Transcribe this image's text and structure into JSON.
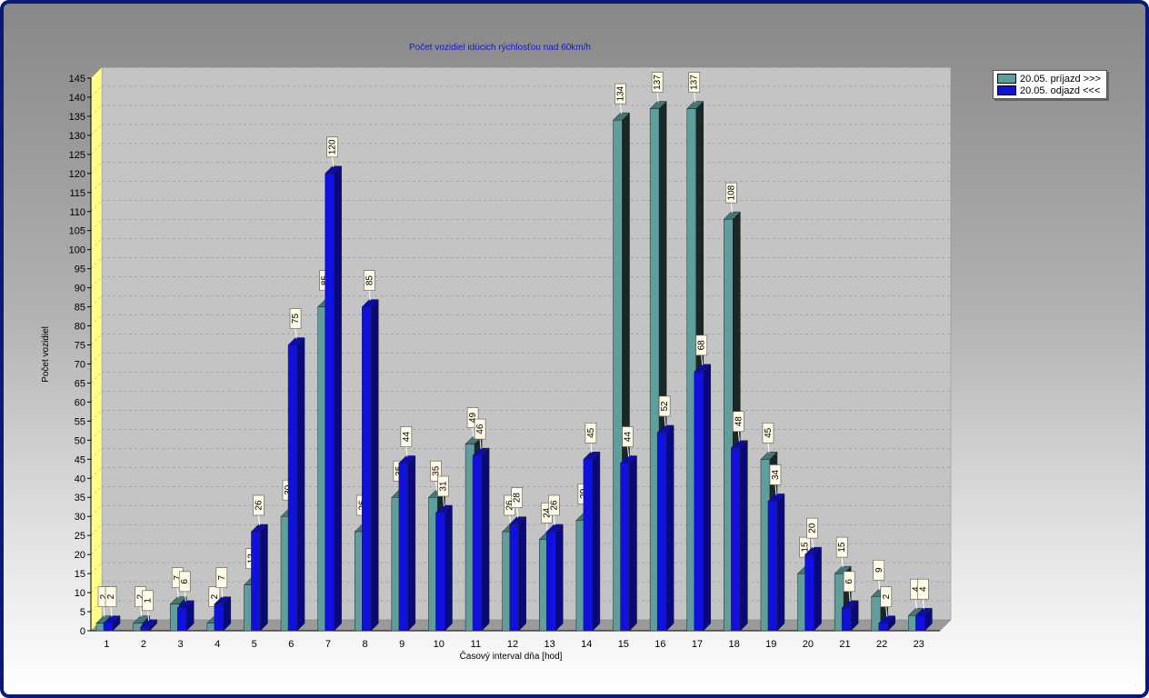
{
  "chart_data": {
    "type": "bar",
    "title": "Počet vozidiel idúcich rýchlosťou nad 60km/h",
    "xlabel": "Časový interval dňa [hod]",
    "ylabel": "Počet vozidiel",
    "ylim": [
      0,
      145
    ],
    "ytick_step": 5,
    "grid": true,
    "legend_position": "top-right",
    "categories": [
      "1",
      "2",
      "3",
      "4",
      "5",
      "6",
      "7",
      "8",
      "9",
      "10",
      "11",
      "12",
      "13",
      "14",
      "15",
      "16",
      "17",
      "18",
      "19",
      "20",
      "21",
      "22",
      "23"
    ],
    "series": [
      {
        "name": "20.05.  príjazd >>>",
        "color": "#5f9e9c",
        "values": [
          2,
          2,
          7,
          2,
          12,
          30,
          85,
          26,
          35,
          35,
          49,
          26,
          24,
          29,
          134,
          137,
          137,
          108,
          45,
          15,
          15,
          9,
          4
        ]
      },
      {
        "name": "20.05.  odjazd <<<",
        "color": "#1010e0",
        "values": [
          2,
          1,
          6,
          7,
          26,
          75,
          120,
          85,
          44,
          31,
          46,
          28,
          26,
          45,
          44,
          52,
          68,
          48,
          34,
          20,
          6,
          2,
          4
        ]
      }
    ]
  }
}
